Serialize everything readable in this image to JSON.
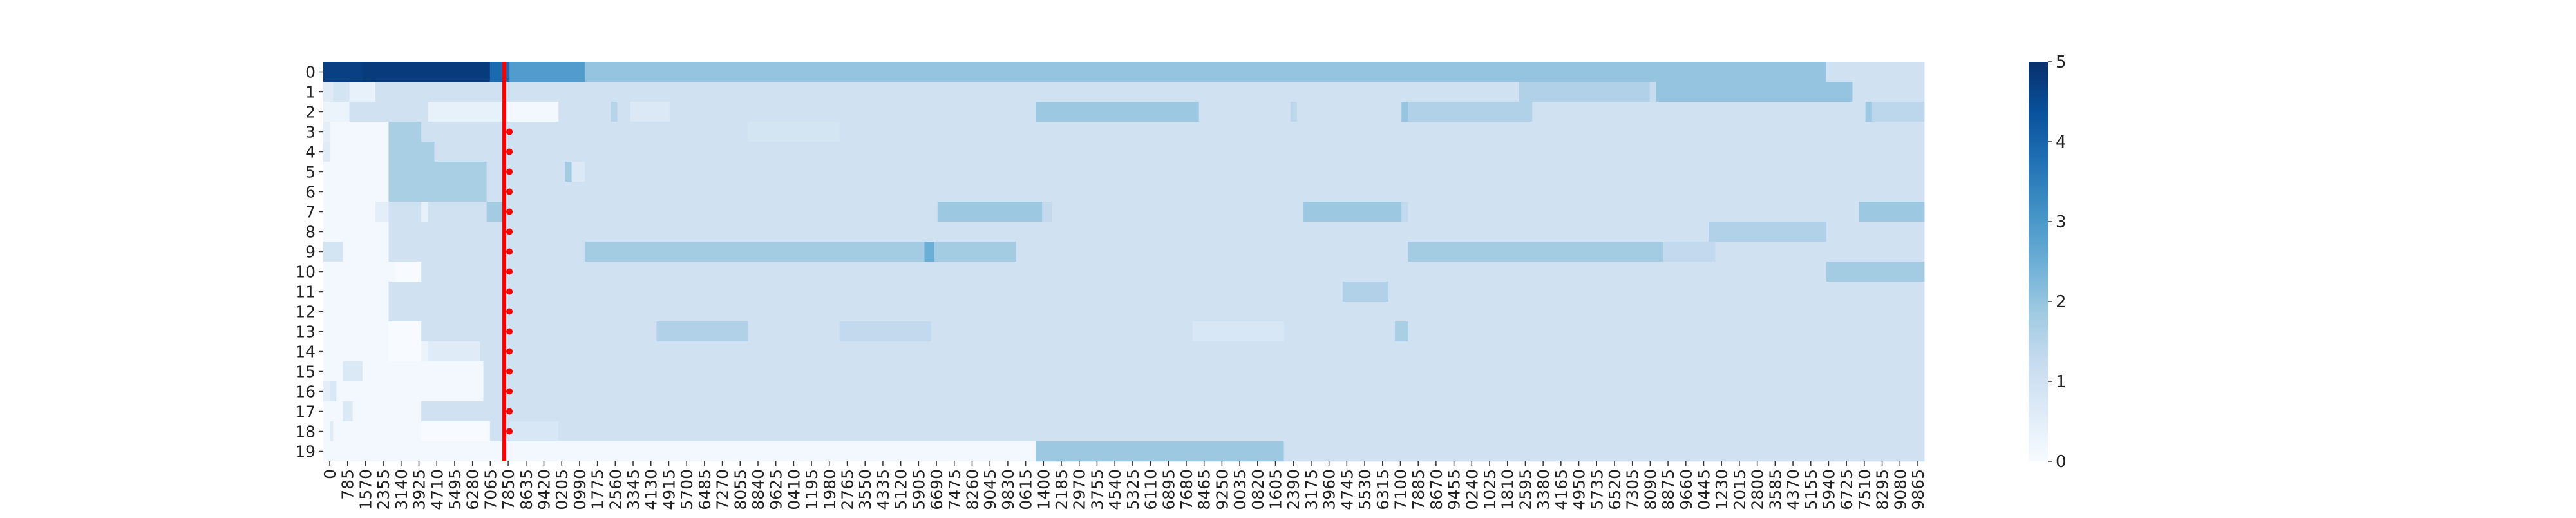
{
  "chart_data": {
    "type": "heatmap",
    "title": "",
    "xlabel": "",
    "ylabel": "",
    "y_categories": [
      "0",
      "1",
      "2",
      "3",
      "4",
      "5",
      "6",
      "7",
      "8",
      "9",
      "10",
      "11",
      "12",
      "13",
      "14",
      "15",
      "16",
      "17",
      "18",
      "19"
    ],
    "x_range": [
      0,
      9865
    ],
    "x_tick_labels": [
      "0",
      "785",
      "1570",
      "2355",
      "3140",
      "3925",
      "4710",
      "5495",
      "6280",
      "7065",
      "7850",
      "8635",
      "9420",
      "0205",
      "0990",
      "1775",
      "2560",
      "3345",
      "4130",
      "4915",
      "5700",
      "6485",
      "7270",
      "8055",
      "8840",
      "9625",
      "0410",
      "1195",
      "1980",
      "2765",
      "3550",
      "4335",
      "5120",
      "5905",
      "6690",
      "7475",
      "8260",
      "9045",
      "9830",
      "0615",
      "1400",
      "2185",
      "2970",
      "3755",
      "4540",
      "5325",
      "6110",
      "6895",
      "7680",
      "8465",
      "9250",
      "0035",
      "0820",
      "1605",
      "2390",
      "3175",
      "3960",
      "4745",
      "5530",
      "6315",
      "7100",
      "7885",
      "8670",
      "9455",
      "0240",
      "1025",
      "1810",
      "2595",
      "3380",
      "4165",
      "4950",
      "5735",
      "6520",
      "7305",
      "8090",
      "8875",
      "9660",
      "0445",
      "1230",
      "2015",
      "2800",
      "3585",
      "4370",
      "5155",
      "5940",
      "6725",
      "7510",
      "8295",
      "9080",
      "9865"
    ],
    "colorbar": {
      "min": 0,
      "max": 5,
      "ticks": [
        0,
        1,
        2,
        3,
        4,
        5
      ],
      "colormap": "Blues"
    },
    "marker_line": {
      "x": 2770,
      "color": "#ff0000"
    },
    "marker_points_rows": [
      3,
      4,
      5,
      6,
      7,
      8,
      9,
      10,
      11,
      12,
      13,
      14,
      15,
      16,
      17,
      18
    ],
    "rows": [
      [
        [
          0,
          600,
          4.7
        ],
        [
          600,
          2550,
          4.8
        ],
        [
          2550,
          2850,
          3.9
        ],
        [
          2850,
          4000,
          2.9
        ],
        [
          4000,
          23000,
          2.0
        ],
        [
          23000,
          24500,
          1.0
        ]
      ],
      [
        [
          0,
          150,
          0.6
        ],
        [
          150,
          400,
          0.9
        ],
        [
          400,
          800,
          0.4
        ],
        [
          800,
          18300,
          1.0
        ],
        [
          18300,
          20300,
          1.6
        ],
        [
          20300,
          20400,
          1.2
        ],
        [
          20400,
          23400,
          2.0
        ],
        [
          23400,
          24500,
          1.0
        ]
      ],
      [
        [
          0,
          400,
          0.3
        ],
        [
          400,
          1600,
          1.0
        ],
        [
          1600,
          2800,
          0.4
        ],
        [
          2800,
          3600,
          0.1
        ],
        [
          3600,
          4400,
          1.0
        ],
        [
          4400,
          4500,
          1.5
        ],
        [
          4500,
          4700,
          1.0
        ],
        [
          4700,
          5300,
          0.7
        ],
        [
          5300,
          10900,
          1.0
        ],
        [
          10900,
          13400,
          1.9
        ],
        [
          13400,
          14800,
          1.0
        ],
        [
          14800,
          14900,
          1.4
        ],
        [
          14900,
          16500,
          1.0
        ],
        [
          16500,
          16600,
          2.0
        ],
        [
          16600,
          18500,
          1.6
        ],
        [
          18500,
          23600,
          1.0
        ],
        [
          23600,
          23700,
          1.9
        ],
        [
          23700,
          24500,
          1.4
        ]
      ],
      [
        [
          0,
          100,
          0.5
        ],
        [
          100,
          1000,
          0.1
        ],
        [
          1000,
          1500,
          1.7
        ],
        [
          1500,
          6500,
          1.0
        ],
        [
          6500,
          7900,
          0.9
        ],
        [
          7900,
          24500,
          1.0
        ]
      ],
      [
        [
          0,
          100,
          0.6
        ],
        [
          100,
          1000,
          0.1
        ],
        [
          1000,
          1700,
          1.7
        ],
        [
          1700,
          24500,
          1.0
        ]
      ],
      [
        [
          0,
          1000,
          0.1
        ],
        [
          1000,
          2500,
          1.7
        ],
        [
          2500,
          3700,
          1.0
        ],
        [
          3700,
          3800,
          1.8
        ],
        [
          3800,
          4000,
          0.7
        ],
        [
          4000,
          24500,
          1.0
        ]
      ],
      [
        [
          0,
          1000,
          0.1
        ],
        [
          1000,
          2500,
          1.7
        ],
        [
          2500,
          24500,
          1.0
        ]
      ],
      [
        [
          0,
          800,
          0.1
        ],
        [
          800,
          1000,
          0.5
        ],
        [
          1000,
          1500,
          1.0
        ],
        [
          1500,
          1600,
          0.4
        ],
        [
          1600,
          2500,
          1.0
        ],
        [
          2500,
          2800,
          1.8
        ],
        [
          2800,
          9400,
          1.0
        ],
        [
          9400,
          11000,
          1.9
        ],
        [
          11000,
          11150,
          1.3
        ],
        [
          11150,
          15000,
          1.0
        ],
        [
          15000,
          16500,
          1.9
        ],
        [
          16500,
          16600,
          1.3
        ],
        [
          16600,
          23500,
          1.0
        ],
        [
          23500,
          24500,
          1.9
        ]
      ],
      [
        [
          0,
          1000,
          0.1
        ],
        [
          1000,
          21200,
          1.0
        ],
        [
          21200,
          23000,
          1.6
        ],
        [
          23000,
          24500,
          1.0
        ]
      ],
      [
        [
          0,
          300,
          0.9
        ],
        [
          300,
          1000,
          0.1
        ],
        [
          1000,
          4000,
          1.0
        ],
        [
          4000,
          9200,
          1.8
        ],
        [
          9200,
          9350,
          2.5
        ],
        [
          9350,
          10600,
          1.8
        ],
        [
          10600,
          16600,
          1.0
        ],
        [
          16600,
          20500,
          1.8
        ],
        [
          20500,
          21300,
          1.3
        ],
        [
          21300,
          24500,
          1.0
        ]
      ],
      [
        [
          0,
          1100,
          0.1
        ],
        [
          1100,
          1500,
          0.0
        ],
        [
          1500,
          23000,
          1.0
        ],
        [
          23000,
          24500,
          1.8
        ]
      ],
      [
        [
          0,
          1000,
          0.1
        ],
        [
          1000,
          15600,
          1.0
        ],
        [
          15600,
          16300,
          1.6
        ],
        [
          16300,
          24500,
          1.0
        ]
      ],
      [
        [
          0,
          1000,
          0.1
        ],
        [
          1000,
          24500,
          1.0
        ]
      ],
      [
        [
          0,
          1000,
          0.1
        ],
        [
          1000,
          1500,
          0.0
        ],
        [
          1500,
          5100,
          1.0
        ],
        [
          5100,
          6500,
          1.6
        ],
        [
          6500,
          7900,
          1.0
        ],
        [
          7900,
          9300,
          1.3
        ],
        [
          9300,
          13300,
          1.0
        ],
        [
          13300,
          14700,
          0.8
        ],
        [
          14700,
          16400,
          1.0
        ],
        [
          16400,
          16600,
          1.7
        ],
        [
          16600,
          24500,
          1.0
        ]
      ],
      [
        [
          0,
          1000,
          0.1
        ],
        [
          1000,
          1500,
          0.0
        ],
        [
          1500,
          1600,
          0.3
        ],
        [
          1600,
          2400,
          0.6
        ],
        [
          2400,
          24500,
          1.0
        ]
      ],
      [
        [
          0,
          300,
          0.1
        ],
        [
          300,
          600,
          0.7
        ],
        [
          600,
          1000,
          0.1
        ],
        [
          1000,
          2450,
          0.1
        ],
        [
          2450,
          24500,
          1.0
        ]
      ],
      [
        [
          0,
          100,
          0.5
        ],
        [
          100,
          200,
          0.8
        ],
        [
          200,
          1000,
          0.1
        ],
        [
          1000,
          2450,
          0.1
        ],
        [
          2450,
          24500,
          1.0
        ]
      ],
      [
        [
          0,
          300,
          0.1
        ],
        [
          300,
          450,
          0.7
        ],
        [
          450,
          1500,
          0.1
        ],
        [
          1500,
          24500,
          1.0
        ]
      ],
      [
        [
          0,
          100,
          0.1
        ],
        [
          100,
          150,
          0.6
        ],
        [
          150,
          1500,
          0.1
        ],
        [
          1500,
          2550,
          0.0
        ],
        [
          2550,
          2850,
          1.0
        ],
        [
          2850,
          3600,
          0.8
        ],
        [
          3600,
          24500,
          1.0
        ]
      ],
      [
        [
          0,
          10900,
          0.1
        ],
        [
          10900,
          14700,
          1.9
        ],
        [
          14700,
          15300,
          1.0
        ],
        [
          15300,
          24500,
          1.0
        ]
      ]
    ]
  }
}
